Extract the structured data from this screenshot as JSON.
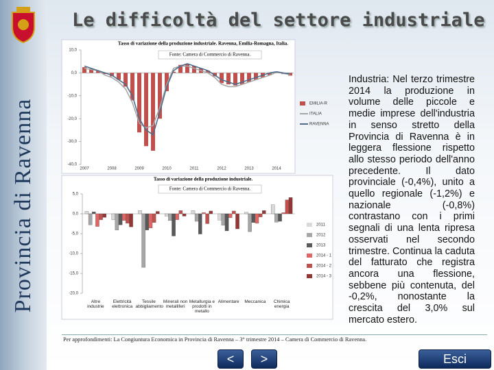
{
  "header": {
    "title": "Le difficoltà del settore industriale"
  },
  "sidebar": {
    "text": "Provincia di Ravenna"
  },
  "chart_data": [
    {
      "type": "combo",
      "title": "Tasso di variazione della produzione industriale. Ravenna, Emilia-Romagna, Italia.",
      "source": "Fonte: Camera di Commercio di Ravenna.",
      "categories": [
        "2007",
        null,
        null,
        null,
        "2008",
        null,
        null,
        null,
        "2009",
        null,
        null,
        null,
        "2010",
        null,
        null,
        null,
        "2011",
        null,
        null,
        null,
        "2012",
        null,
        null,
        null,
        "2013",
        null,
        null,
        null,
        "2014",
        null,
        null
      ],
      "series": [
        {
          "name": "EMILIA-R",
          "type": "bar",
          "color": "#c0504d",
          "values": [
            2.5,
            1.8,
            1.0,
            -0.5,
            -1.5,
            -3.0,
            -6.0,
            -12.0,
            -26.0,
            -32.0,
            -34.0,
            -20.0,
            -8.0,
            0.5,
            3.5,
            4.0,
            3.0,
            2.0,
            1.0,
            -1.5,
            -4.5,
            -5.0,
            -5.5,
            -5.0,
            -4.0,
            -3.0,
            -2.0,
            -1.0,
            0.2,
            -0.5,
            -1.2
          ]
        },
        {
          "name": "ITALIA",
          "type": "line",
          "color": "#a6a6a6",
          "values": [
            2.0,
            1.5,
            1.0,
            -1.0,
            -2.0,
            -4.0,
            -7.0,
            -13.0,
            -22.0,
            -24.0,
            -23.0,
            -15.0,
            -5.0,
            2.0,
            3.0,
            3.0,
            2.0,
            1.0,
            0.0,
            -2.0,
            -5.0,
            -6.0,
            -6.0,
            -5.0,
            -4.0,
            -3.0,
            -2.0,
            -1.0,
            0.3,
            -0.2,
            -0.8
          ]
        },
        {
          "name": "RAVENNA",
          "type": "line",
          "color": "#4f6d8a",
          "values": [
            3.0,
            2.0,
            1.0,
            0.0,
            -1.0,
            -3.0,
            -5.0,
            -10.0,
            -20.0,
            -25.0,
            -27.0,
            -17.0,
            -6.0,
            1.0,
            3.0,
            4.0,
            3.0,
            2.0,
            1.0,
            -1.0,
            -3.0,
            -4.0,
            -5.0,
            -4.0,
            -3.0,
            -2.0,
            -1.0,
            0.0,
            0.5,
            0.0,
            -0.4
          ]
        }
      ],
      "ylim": [
        -40,
        10
      ],
      "yticks": [
        {
          "value": 10,
          "label": "10,0"
        },
        {
          "value": 0,
          "label": "0,0"
        },
        {
          "value": -10,
          "label": "-10,0"
        },
        {
          "value": -20,
          "label": "-20,0"
        },
        {
          "value": -30,
          "label": "-30,0"
        },
        {
          "value": -40,
          "label": "-40,0"
        }
      ]
    },
    {
      "type": "bar",
      "title": "Tasso di variazione della produzione industriale.",
      "source": "Fonte: Camera di Commercio di Ravenna.",
      "categories": [
        "Altre industrie",
        "Elettricità elettronica",
        "Tessile abbigliamento",
        "Minerali non metalliferi",
        "Metallurgia e prodotti in metallo",
        "Alimentare",
        "Meccanica",
        "Chimica energia"
      ],
      "series": [
        {
          "name": "2011",
          "color": "#d9d9d9",
          "values": [
            0.6,
            -1.5,
            0.8,
            -0.6,
            0.8,
            -1.6,
            0.4,
            2.3
          ]
        },
        {
          "name": "2012",
          "color": "#a6a6a6",
          "values": [
            -2.8,
            -4.1,
            -13.5,
            -1.7,
            -1.9,
            -2.9,
            -4.5,
            -2.1
          ]
        },
        {
          "name": "2013",
          "color": "#595959",
          "values": [
            0.5,
            -2.8,
            -4.1,
            -5.6,
            -5.1,
            -4.3,
            -2.2,
            -1.9
          ]
        },
        {
          "name": "2014 - 1",
          "color": "#e06666",
          "values": [
            -3.2,
            -1.7,
            -3.6,
            -1.5,
            0.3,
            -1.0,
            -2.4,
            0.3
          ]
        },
        {
          "name": "2014 - 2",
          "color": "#c0504d",
          "values": [
            -1.5,
            -2.4,
            -2.2,
            0.8,
            -2.5,
            0.7,
            -0.8,
            3.5
          ]
        },
        {
          "name": "2014 - 3",
          "color": "#943634",
          "values": [
            -0.9,
            -3.3,
            0.6,
            -0.6,
            0.7,
            -3.8,
            0.8,
            4.1
          ]
        }
      ],
      "ylim": [
        -20,
        5
      ],
      "yticks": [
        {
          "value": 5,
          "label": "5,0"
        },
        {
          "value": 0,
          "label": "0,0"
        },
        {
          "value": -5,
          "label": "-5,0"
        },
        {
          "value": -10,
          "label": "-10,0"
        },
        {
          "value": -15,
          "label": "-15,0"
        },
        {
          "value": -20,
          "label": "-20,0"
        }
      ]
    }
  ],
  "body_text": "Industria: Nel terzo trimestre 2014 la produzione in volume delle piccole e medie imprese dell'industria in senso stretto della Provincia di Ravenna è in leggera flessione rispetto allo stesso periodo dell'anno precedente. Il dato provinciale (-0,4%), unito a quello regionale (-1,2%) e nazionale (-0,8%) contrastano con i primi segnali di una lenta ripresa osservati nel secondo trimestre. Continua la caduta del fatturato che registra ancora una flessione, sebbene più contenuta, del -0,2%, nonostante la crescita del 3,0% sul mercato estero.",
  "footer": "Per approfondimenti: La Congiuntura Economica in Provincia di Ravenna – 3° trimestre 2014 – Camera di Commercio di Ravenna.",
  "nav": {
    "prev": "<",
    "next": ">",
    "exit": "Esci"
  }
}
